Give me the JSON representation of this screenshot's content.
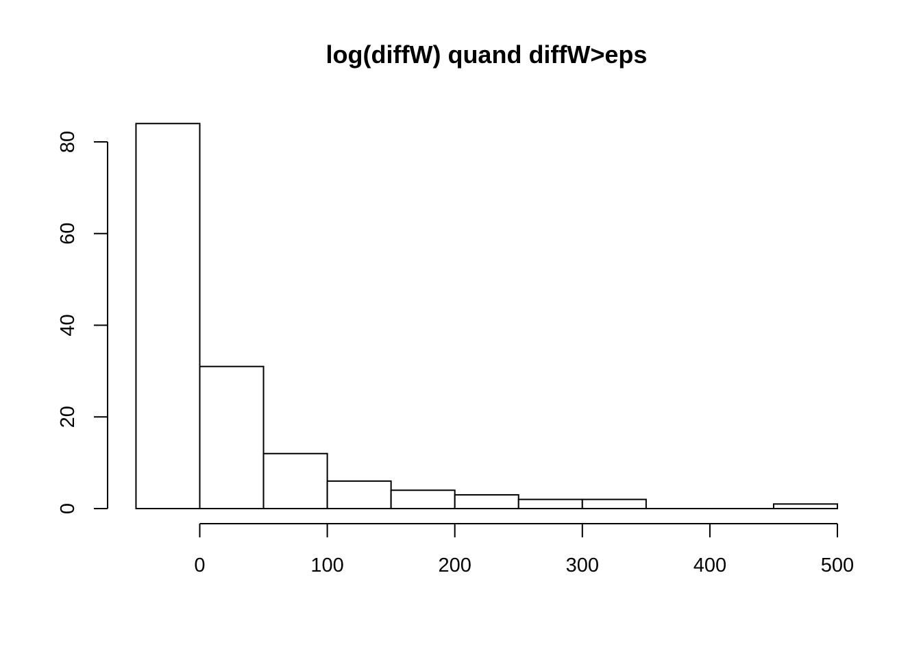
{
  "chart_data": {
    "type": "bar",
    "title": "log(diffW) quand diffW>eps",
    "xlabel": "",
    "ylabel": "",
    "bins": [
      {
        "x0": -50,
        "x1": 0,
        "count": 84
      },
      {
        "x0": 0,
        "x1": 50,
        "count": 31
      },
      {
        "x0": 50,
        "x1": 100,
        "count": 12
      },
      {
        "x0": 100,
        "x1": 150,
        "count": 6
      },
      {
        "x0": 150,
        "x1": 200,
        "count": 4
      },
      {
        "x0": 200,
        "x1": 250,
        "count": 3
      },
      {
        "x0": 250,
        "x1": 300,
        "count": 2
      },
      {
        "x0": 300,
        "x1": 350,
        "count": 2
      },
      {
        "x0": 350,
        "x1": 400,
        "count": 0
      },
      {
        "x0": 400,
        "x1": 450,
        "count": 0
      },
      {
        "x0": 450,
        "x1": 500,
        "count": 1
      }
    ],
    "x_ticks": [
      0,
      100,
      200,
      300,
      400,
      500
    ],
    "y_ticks": [
      0,
      20,
      40,
      60,
      80
    ],
    "x_axis_range": [
      0,
      500
    ],
    "y_axis_range": [
      0,
      80
    ],
    "grid": false,
    "legend": "none"
  }
}
